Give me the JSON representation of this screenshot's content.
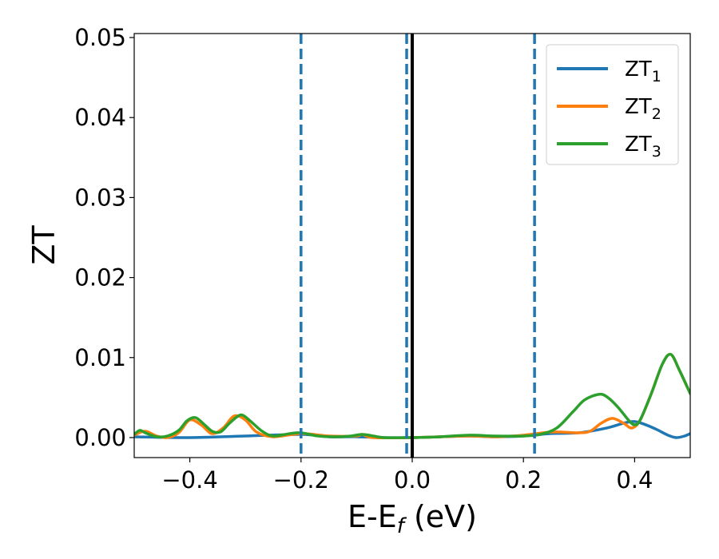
{
  "chart_data": {
    "type": "line",
    "xlabel": "E-E",
    "xlabel_sub": "f",
    "xlabel_unit": " (eV)",
    "ylabel": "ZT",
    "xlim": [
      -0.5,
      0.5
    ],
    "ylim": [
      -0.0025,
      0.0505
    ],
    "x_ticks": [
      -0.4,
      -0.2,
      0.0,
      0.2,
      0.4
    ],
    "x_tick_labels": [
      "−0.4",
      "−0.2",
      "0.0",
      "0.2",
      "0.4"
    ],
    "y_ticks": [
      0.0,
      0.01,
      0.02,
      0.03,
      0.04,
      0.05
    ],
    "y_tick_labels": [
      "0.00",
      "0.01",
      "0.02",
      "0.03",
      "0.04",
      "0.05"
    ],
    "grid": false,
    "legend_position": "top-right",
    "vertical_lines": [
      {
        "x": -0.2,
        "style": "dashed",
        "color": "#1f77b4"
      },
      {
        "x": -0.01,
        "style": "dashed",
        "color": "#1f77b4"
      },
      {
        "x": 0.0,
        "style": "solid",
        "color": "#000000"
      },
      {
        "x": 0.22,
        "style": "dashed",
        "color": "#1f77b4"
      }
    ],
    "series": [
      {
        "name": "ZT",
        "name_sub": "1",
        "color": "#1f77b4",
        "points": [
          [
            -0.5,
            0.0001
          ],
          [
            -0.4,
            0.0
          ],
          [
            -0.3,
            0.0002
          ],
          [
            -0.2,
            0.0004
          ],
          [
            -0.15,
            0.0001
          ],
          [
            -0.1,
            0.0001
          ],
          [
            -0.05,
            0.0
          ],
          [
            0.0,
            0.0
          ],
          [
            0.05,
            0.0001
          ],
          [
            0.1,
            0.0002
          ],
          [
            0.15,
            0.0001
          ],
          [
            0.2,
            0.0002
          ],
          [
            0.25,
            0.0005
          ],
          [
            0.3,
            0.0006
          ],
          [
            0.35,
            0.0012
          ],
          [
            0.38,
            0.0018
          ],
          [
            0.4,
            0.002
          ],
          [
            0.42,
            0.0016
          ],
          [
            0.44,
            0.001
          ],
          [
            0.46,
            0.0003
          ],
          [
            0.475,
            0.0
          ],
          [
            0.49,
            0.0002
          ],
          [
            0.5,
            0.0005
          ]
        ]
      },
      {
        "name": "ZT",
        "name_sub": "2",
        "color": "#ff7f0e",
        "points": [
          [
            -0.5,
            0.0003
          ],
          [
            -0.48,
            0.0008
          ],
          [
            -0.46,
            0.0002
          ],
          [
            -0.44,
            0.0
          ],
          [
            -0.42,
            0.0006
          ],
          [
            -0.4,
            0.0022
          ],
          [
            -0.38,
            0.0016
          ],
          [
            -0.36,
            0.0005
          ],
          [
            -0.34,
            0.0012
          ],
          [
            -0.32,
            0.0027
          ],
          [
            -0.3,
            0.0022
          ],
          [
            -0.28,
            0.0007
          ],
          [
            -0.25,
            0.0001
          ],
          [
            -0.2,
            0.0005
          ],
          [
            -0.15,
            0.0002
          ],
          [
            -0.1,
            0.0002
          ],
          [
            -0.09,
            0.0004
          ],
          [
            -0.07,
            0.0
          ],
          [
            0.0,
            0.0
          ],
          [
            0.1,
            0.0002
          ],
          [
            0.15,
            0.0001
          ],
          [
            0.2,
            0.0003
          ],
          [
            0.25,
            0.0007
          ],
          [
            0.3,
            0.0006
          ],
          [
            0.32,
            0.0008
          ],
          [
            0.34,
            0.0018
          ],
          [
            0.36,
            0.0024
          ],
          [
            0.38,
            0.0018
          ],
          [
            0.395,
            0.0012
          ],
          [
            0.41,
            0.0022
          ],
          [
            0.43,
            0.0055
          ],
          [
            0.45,
            0.0092
          ],
          [
            0.465,
            0.0104
          ],
          [
            0.48,
            0.0085
          ],
          [
            0.5,
            0.0055
          ]
        ]
      },
      {
        "name": "ZT",
        "name_sub": "3",
        "color": "#2ca02c",
        "points": [
          [
            -0.5,
            0.0004
          ],
          [
            -0.49,
            0.0009
          ],
          [
            -0.48,
            0.0006
          ],
          [
            -0.46,
            0.0001
          ],
          [
            -0.44,
            0.0002
          ],
          [
            -0.42,
            0.0009
          ],
          [
            -0.405,
            0.0021
          ],
          [
            -0.39,
            0.0025
          ],
          [
            -0.375,
            0.0017
          ],
          [
            -0.36,
            0.0008
          ],
          [
            -0.345,
            0.0007
          ],
          [
            -0.33,
            0.0017
          ],
          [
            -0.315,
            0.0026
          ],
          [
            -0.305,
            0.0028
          ],
          [
            -0.29,
            0.002
          ],
          [
            -0.27,
            0.0008
          ],
          [
            -0.25,
            0.0002
          ],
          [
            -0.22,
            0.0005
          ],
          [
            -0.2,
            0.0006
          ],
          [
            -0.17,
            0.0002
          ],
          [
            -0.14,
            0.0001
          ],
          [
            -0.11,
            0.0002
          ],
          [
            -0.09,
            0.0004
          ],
          [
            -0.07,
            0.0002
          ],
          [
            -0.05,
            0.0
          ],
          [
            0.0,
            0.0
          ],
          [
            0.05,
            0.0001
          ],
          [
            0.1,
            0.0003
          ],
          [
            0.15,
            0.0002
          ],
          [
            0.2,
            0.0002
          ],
          [
            0.23,
            0.0004
          ],
          [
            0.26,
            0.0012
          ],
          [
            0.29,
            0.0033
          ],
          [
            0.31,
            0.0047
          ],
          [
            0.335,
            0.0054
          ],
          [
            0.35,
            0.0051
          ],
          [
            0.37,
            0.0038
          ],
          [
            0.39,
            0.0021
          ],
          [
            0.4,
            0.0016
          ],
          [
            0.41,
            0.0022
          ],
          [
            0.43,
            0.0055
          ],
          [
            0.45,
            0.0092
          ],
          [
            0.465,
            0.0104
          ],
          [
            0.48,
            0.0085
          ],
          [
            0.5,
            0.0055
          ]
        ]
      }
    ]
  }
}
